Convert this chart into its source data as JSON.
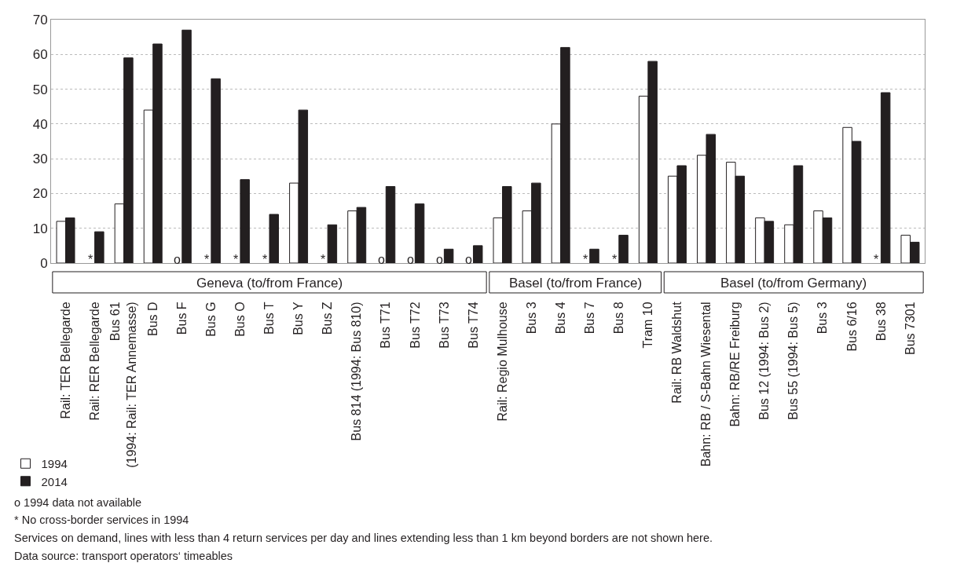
{
  "chart_data": {
    "type": "bar",
    "categories": [
      "Rail: TER Bellegarde",
      "Rail: RER Bellegarde",
      "Bus 61\n(1994: Rail: TER Annemasse)",
      "Bus D",
      "Bus F",
      "Bus G",
      "Bus O",
      "Bus T",
      "Bus Y",
      "Bus Z",
      "Bus 814 (1994: Bus 810)",
      "Bus T71",
      "Bus T72",
      "Bus T73",
      "Bus T74",
      "Rail: Regio Mulhouse",
      "Bus 3",
      "Bus 4",
      "Bus 7",
      "Bus 8",
      "Tram 10",
      "Rail: RB Waldshut",
      "Bahn: RB / S-Bahn Wiesental",
      "Bahn: RB/RE Freiburg",
      "Bus 12 (1994: Bus 2)",
      "Bus 55 (1994: Bus 5)",
      "Bus 3",
      "Bus 6/16",
      "Bus 38",
      "Bus 7301"
    ],
    "series": [
      {
        "name": "1994",
        "color": "#ffffff",
        "values": [
          12,
          null,
          17,
          44,
          null,
          null,
          null,
          null,
          23,
          null,
          15,
          null,
          null,
          null,
          null,
          13,
          15,
          40,
          null,
          null,
          48,
          25,
          31,
          29,
          13,
          11,
          15,
          39,
          null,
          8
        ]
      },
      {
        "name": "2014",
        "color": "#231f20",
        "values": [
          13,
          9,
          59,
          63,
          67,
          53,
          24,
          14,
          44,
          11,
          16,
          22,
          17,
          4,
          5,
          22,
          23,
          62,
          4,
          8,
          58,
          28,
          37,
          25,
          12,
          28,
          13,
          35,
          49,
          6
        ]
      }
    ],
    "ylim": [
      0,
      70
    ],
    "yticks": [
      0,
      10,
      20,
      30,
      40,
      50,
      60,
      70
    ],
    "grid": "y",
    "legend": "bottom left",
    "annotations": [
      "Geneva (to/from France)",
      "Basel (to/from France)",
      "Basel (to/from Germany)",
      {
        "text": "*",
        "x": "Rail: RER Bellegarde",
        "y": 0
      },
      {
        "text": "o",
        "x": "Bus F",
        "y": 0
      },
      {
        "text": "*",
        "x": "Bus G",
        "y": 0
      },
      {
        "text": "*",
        "x": "Bus O",
        "y": 0
      },
      {
        "text": "*",
        "x": "Bus T",
        "y": 0
      },
      {
        "text": "*",
        "x": "Bus Z",
        "y": 0
      },
      {
        "text": "o",
        "x": "Bus T71",
        "y": 0
      },
      {
        "text": "o",
        "x": "Bus T72",
        "y": 0
      },
      {
        "text": "o",
        "x": "Bus T73",
        "y": 0
      },
      {
        "text": "o",
        "x": "Bus T74",
        "y": 0
      },
      {
        "text": "*",
        "x": "Bus 7",
        "y": 0
      },
      {
        "text": "*",
        "x": "Bus 8",
        "y": 0
      },
      {
        "text": "*",
        "x": "Bus 38",
        "y": 0
      },
      "o 1994 data not available",
      "* No cross-border services in 1994",
      "Services on demand, lines with less than 4 return services per day and lines extending less than 1 km beyond borders are not shown here.",
      "Data source: transport operators‘ timeables"
    ]
  }
}
